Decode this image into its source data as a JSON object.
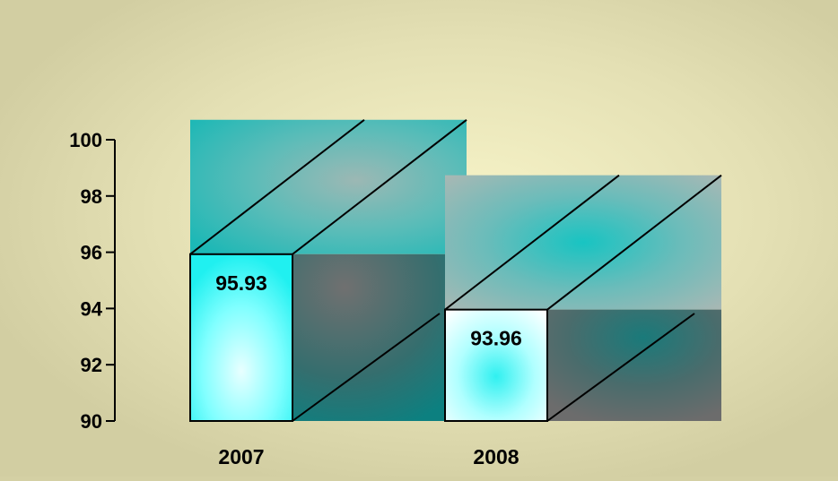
{
  "chart_data": {
    "type": "bar",
    "categories": [
      "2007",
      "2008"
    ],
    "values": [
      95.93,
      93.96
    ],
    "data_labels": [
      "95.93",
      "93.96"
    ],
    "y_ticks": [
      "100",
      "98",
      "96",
      "94",
      "92",
      "90"
    ],
    "ylim": [
      90,
      100
    ],
    "style": "3d",
    "title": "",
    "xlabel": "",
    "ylabel": ""
  },
  "colors": {
    "page_background": "#d4d0a4",
    "panel_center": "#f2f0c4",
    "bar_front_light": "#d8ffff",
    "bar_front_mid": "#40ffff",
    "side_dark": "#0c7f7f",
    "side_gray": "#6a6a6a",
    "top_teal": "#20b6b4",
    "top_gray": "#a6b8b4"
  }
}
